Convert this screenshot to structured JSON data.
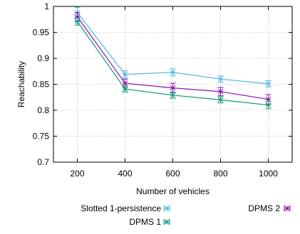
{
  "chart_data": {
    "type": "line",
    "xlabel": "Number of vehicles",
    "ylabel": "Reachability",
    "x": [
      200,
      400,
      600,
      800,
      1000
    ],
    "xlim": [
      100,
      1100
    ],
    "ylim": [
      0.7,
      1.0
    ],
    "yticks": [
      "0.7",
      "0.75",
      "0.8",
      "0.85",
      "0.9",
      "0.95",
      "1"
    ],
    "xticks": [
      "200",
      "400",
      "600",
      "800",
      "1000"
    ],
    "grid": true,
    "legend": "bottom",
    "series": [
      {
        "name": "Slotted 1-persistence",
        "color": "#4fb6dc",
        "values": [
          0.988,
          0.869,
          0.873,
          0.86,
          0.851
        ],
        "err": [
          0.01,
          0.007,
          0.007,
          0.006,
          0.006
        ]
      },
      {
        "name": "DPMS 2",
        "color": "#8a0fb0",
        "values": [
          0.98,
          0.852,
          0.843,
          0.836,
          0.821
        ],
        "err": [
          0.008,
          0.008,
          0.009,
          0.008,
          0.009
        ]
      },
      {
        "name": "DPMS 1",
        "color": "#0c9a78",
        "values": [
          0.971,
          0.841,
          0.829,
          0.82,
          0.81
        ],
        "err": [
          0.007,
          0.006,
          0.006,
          0.006,
          0.007
        ]
      }
    ]
  }
}
